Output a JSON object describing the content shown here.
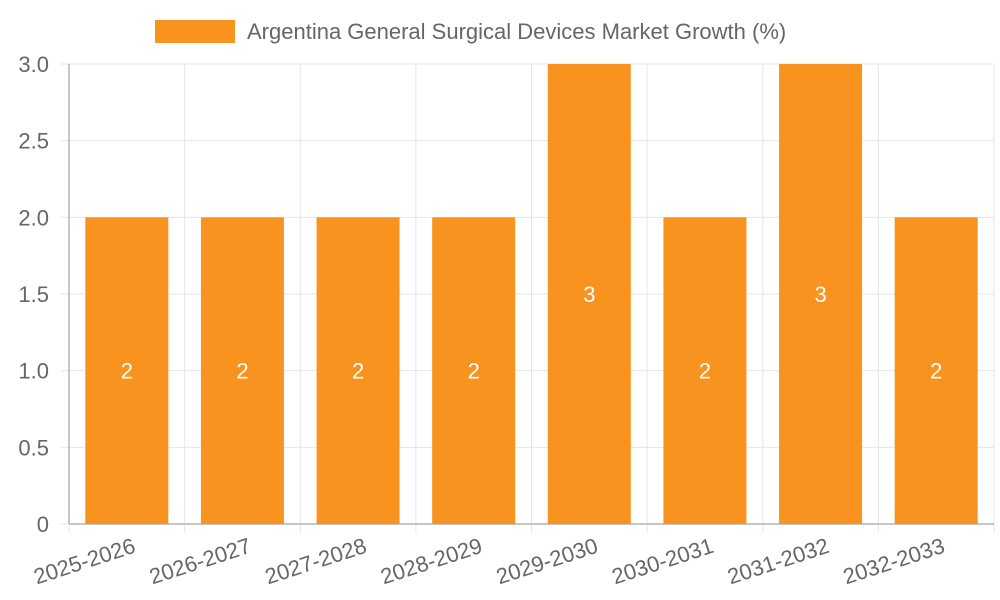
{
  "chart_data": {
    "type": "bar",
    "categories": [
      "2025-2026",
      "2026-2027",
      "2027-2028",
      "2028-2029",
      "2029-2030",
      "2030-2031",
      "2031-2032",
      "2032-2033"
    ],
    "series": [
      {
        "name": "Argentina General Surgical Devices Market Growth (%)",
        "values": [
          2,
          2,
          2,
          2,
          3,
          2,
          3,
          2
        ],
        "value_labels": [
          "2",
          "2",
          "2",
          "2",
          "3",
          "2",
          "3",
          "2"
        ],
        "color": "#f7931e"
      }
    ],
    "ylim": [
      0,
      3
    ],
    "yticks": [
      0,
      0.5,
      1,
      1.5,
      2,
      2.5,
      3
    ],
    "ytick_labels": [
      "0",
      "0.5",
      "1.0",
      "1.5",
      "2.0",
      "2.5",
      "3.0"
    ],
    "grid": true,
    "legend_position": "top-center",
    "grid_color": "#e6e6e6",
    "axis_color": "#b3b3b3"
  }
}
